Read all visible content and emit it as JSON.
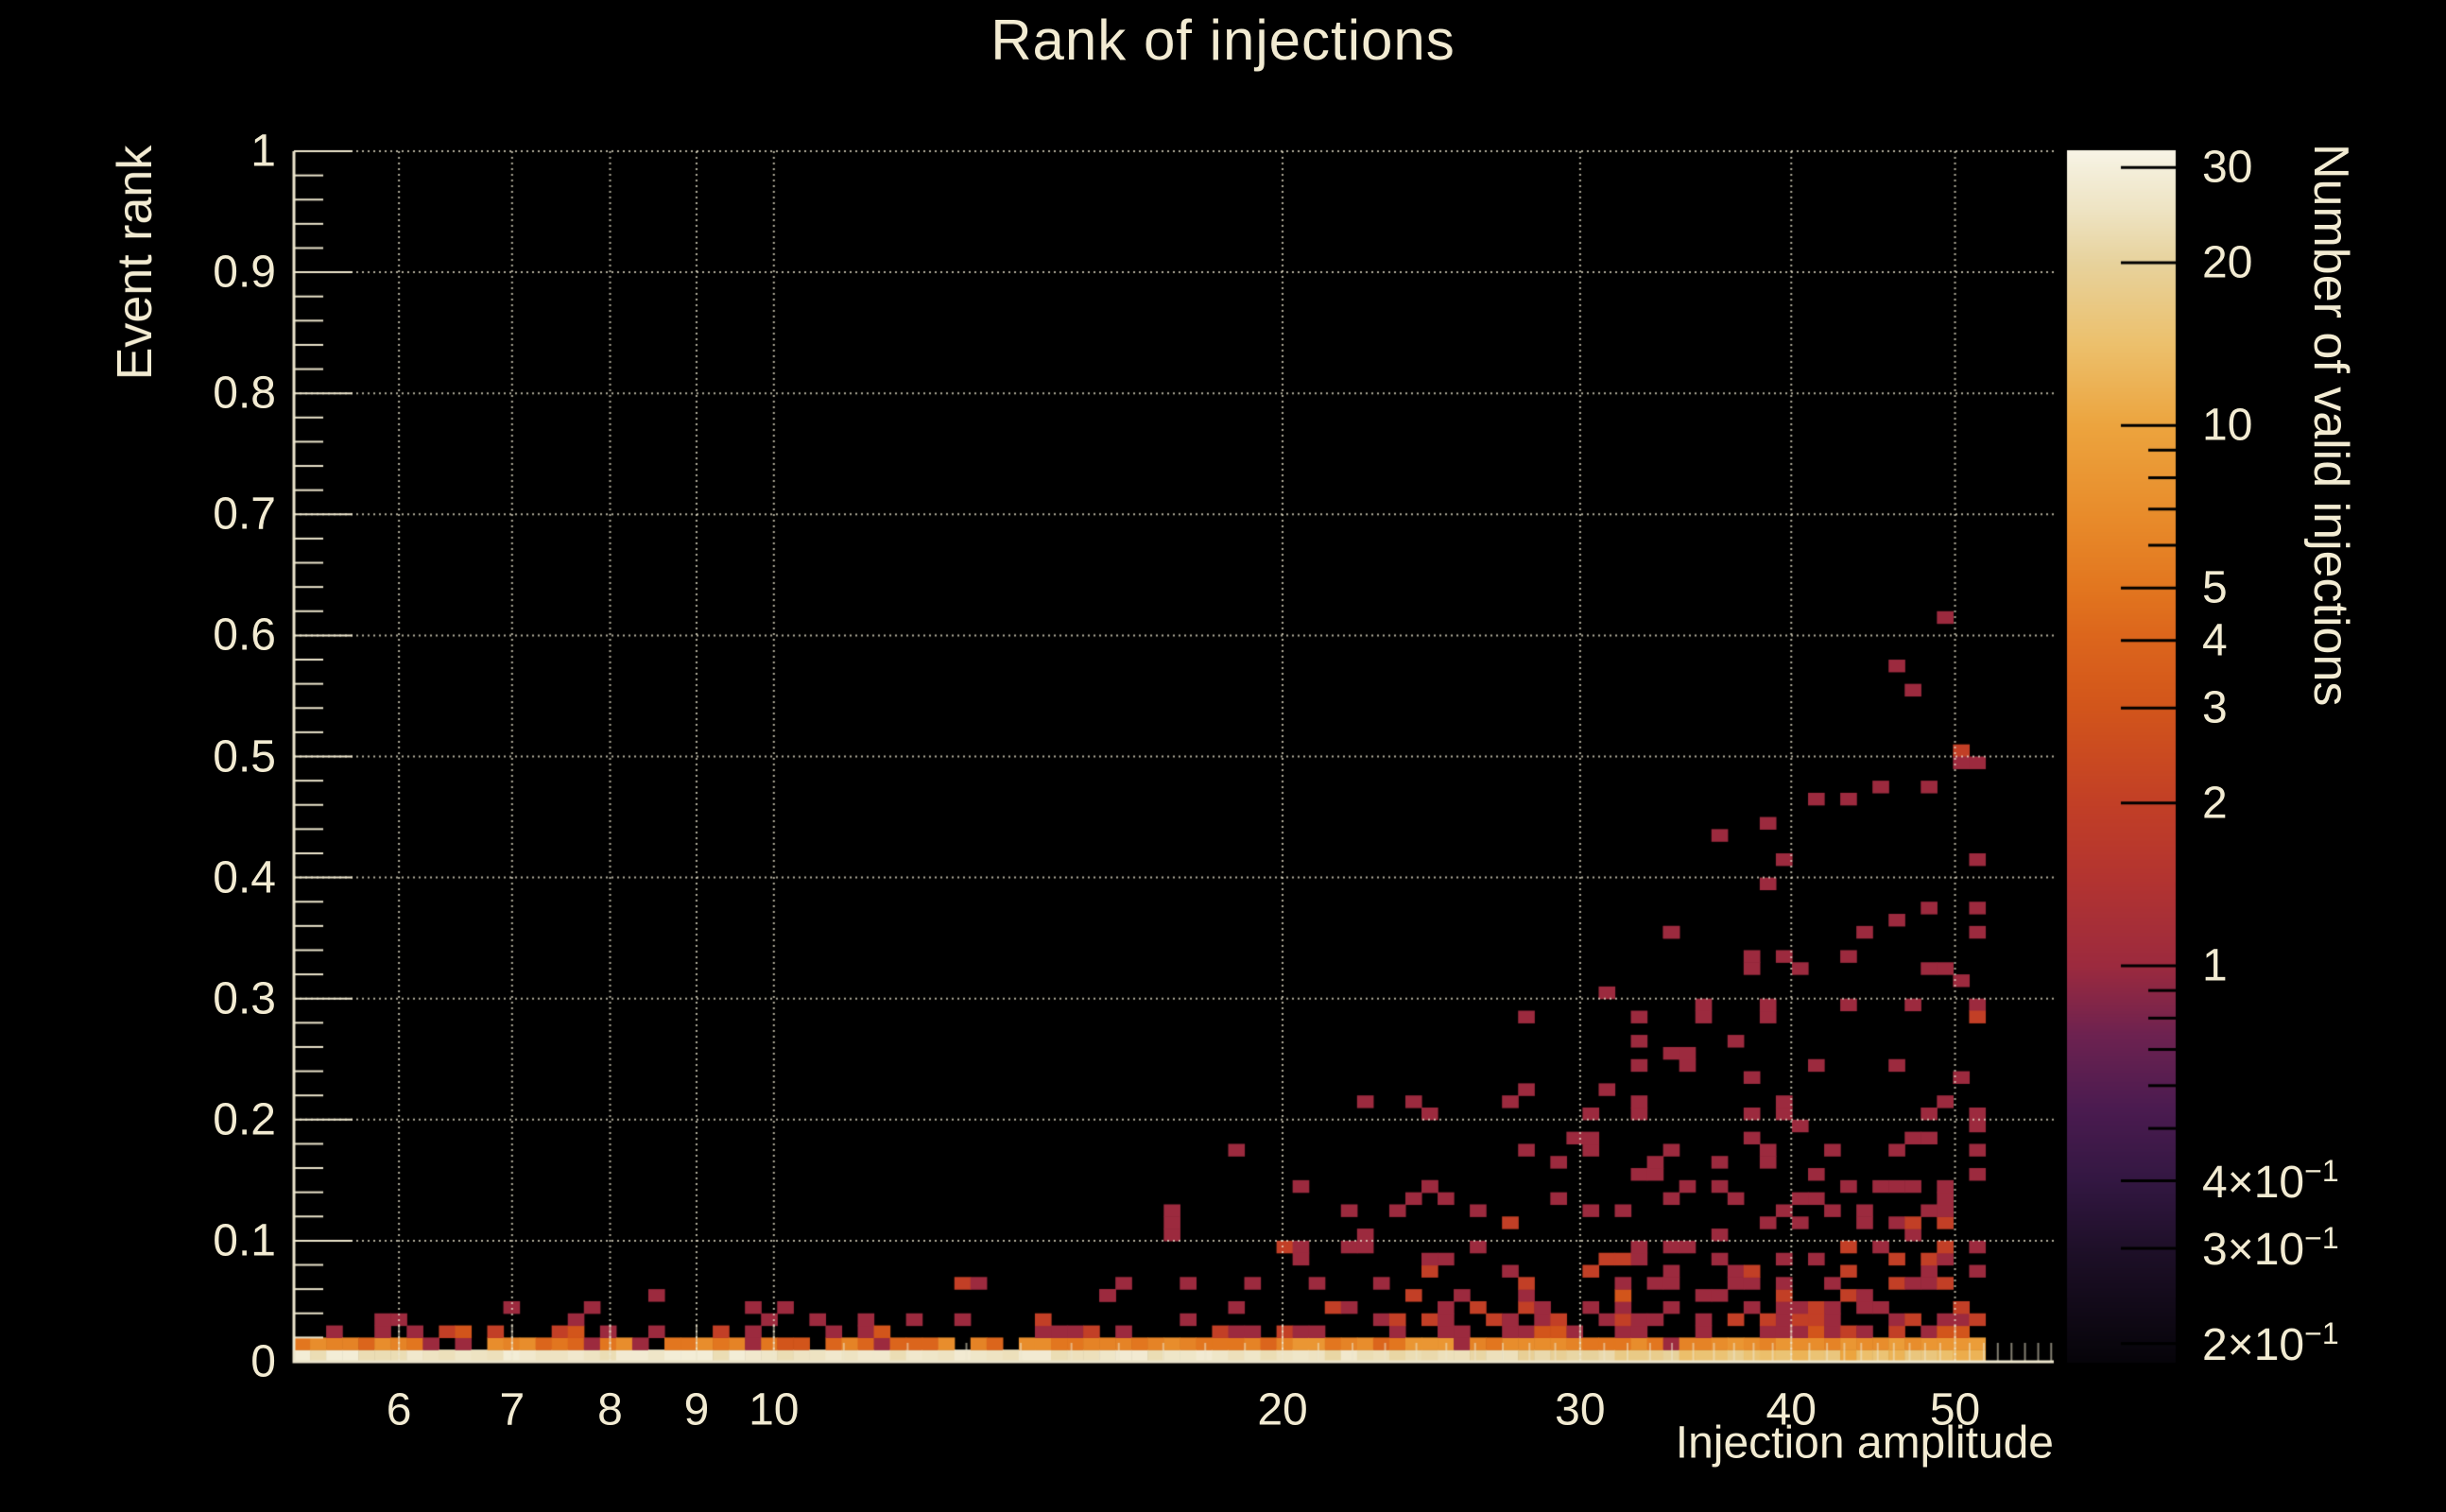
{
  "page": {
    "background": "#000000",
    "text_color": "#f2ebd2",
    "grid_color": "#efe8d0",
    "axis_color": "#ece5cc"
  },
  "chart_data": {
    "type": "heatmap",
    "title": "Rank of injections",
    "xlabel": "Injection amplitude",
    "ylabel": "Event rank",
    "zlabel": "Number of valid injections",
    "x_scale": "log",
    "x_axis_range": [
      5.2,
      57.2
    ],
    "x_hist_range": [
      5.2,
      52.1
    ],
    "nx": 105,
    "ny": 100,
    "y_axis_range": [
      0,
      1
    ],
    "z_scale": "log",
    "z_range": [
      0.185,
      32.3
    ],
    "grid": true,
    "legend_position": "right-colorbar",
    "x_major_ticks": [
      6,
      7,
      8,
      9,
      10,
      20,
      30,
      40,
      50
    ],
    "x_major_tick_labels": [
      "6",
      "7",
      "8",
      "9",
      "10",
      "20",
      "30",
      "40",
      "50"
    ],
    "x_minor_tick_integer_range": [
      6,
      57
    ],
    "y_major_ticks": [
      0,
      0.1,
      0.2,
      0.3,
      0.4,
      0.5,
      0.6,
      0.7,
      0.8,
      0.9,
      1
    ],
    "y_major_tick_labels": [
      "0",
      "0.1",
      "0.2",
      "0.3",
      "0.4",
      "0.5",
      "0.6",
      "0.7",
      "0.8",
      "0.9",
      "1"
    ],
    "y_minor_step": 0.02,
    "z_major_ticks": [
      {
        "value": 30,
        "label": "30",
        "exp": ""
      },
      {
        "value": 20,
        "label": "20",
        "exp": ""
      },
      {
        "value": 10,
        "label": "10",
        "exp": ""
      },
      {
        "value": 5,
        "label": "5",
        "exp": ""
      },
      {
        "value": 4,
        "label": "4",
        "exp": ""
      },
      {
        "value": 3,
        "label": "3",
        "exp": ""
      },
      {
        "value": 2,
        "label": "2",
        "exp": ""
      },
      {
        "value": 1,
        "label": "1",
        "exp": ""
      },
      {
        "value": 0.4,
        "label": "4×10",
        "exp": "−1"
      },
      {
        "value": 0.3,
        "label": "3×10",
        "exp": "−1"
      },
      {
        "value": 0.2,
        "label": "2×10",
        "exp": "−1"
      }
    ],
    "z_minor_ticks": [
      9,
      8,
      7,
      6,
      0.9,
      0.8,
      0.7,
      0.6,
      0.5
    ],
    "colormap": [
      [
        0.0,
        "#060409"
      ],
      [
        0.09,
        "#1d0f27"
      ],
      [
        0.15,
        "#331742"
      ],
      [
        0.21,
        "#4b1b50"
      ],
      [
        0.27,
        "#6d2250"
      ],
      [
        0.327,
        "#9c2a3e"
      ],
      [
        0.4,
        "#b33430"
      ],
      [
        0.461,
        "#c23f26"
      ],
      [
        0.54,
        "#d2551b"
      ],
      [
        0.6,
        "#dc661c"
      ],
      [
        0.639,
        "#e2761f"
      ],
      [
        0.7,
        "#e88c2b"
      ],
      [
        0.773,
        "#eca43e"
      ],
      [
        0.84,
        "#ecc06c"
      ],
      [
        0.907,
        "#e7d29c"
      ],
      [
        0.95,
        "#eee3c2"
      ],
      [
        0.986,
        "#f4efdb"
      ],
      [
        1.0,
        "#f8f4e6"
      ]
    ],
    "generation": {
      "seed": 12345,
      "row0_profile": [
        [
          0,
          26
        ],
        [
          20,
          26
        ],
        [
          40,
          25
        ],
        [
          55,
          26
        ],
        [
          65,
          24
        ],
        [
          75,
          21
        ],
        [
          85,
          17
        ],
        [
          95,
          14
        ],
        [
          104,
          12
        ]
      ],
      "row0_jitter": 7,
      "row1_profile": [
        [
          0,
          5
        ],
        [
          30,
          5
        ],
        [
          60,
          6
        ],
        [
          80,
          7
        ],
        [
          104,
          8
        ]
      ],
      "row1_jitter": 4,
      "row1_zero_prob": 0.06,
      "row1_one_prob": 0.1,
      "row2_prob": [
        [
          0,
          0.35
        ],
        [
          40,
          0.45
        ],
        [
          60,
          0.55
        ],
        [
          75,
          0.65
        ],
        [
          90,
          0.72
        ],
        [
          104,
          0.72
        ]
      ],
      "row3_prob": [
        [
          0,
          0.07
        ],
        [
          40,
          0.12
        ],
        [
          60,
          0.3
        ],
        [
          75,
          0.45
        ],
        [
          90,
          0.55
        ],
        [
          104,
          0.55
        ]
      ],
      "scatter_max_row": [
        [
          0,
          4
        ],
        [
          25,
          5
        ],
        [
          40,
          6
        ],
        [
          50,
          10
        ],
        [
          58,
          16
        ],
        [
          68,
          22
        ],
        [
          76,
          28
        ],
        [
          84,
          34
        ],
        [
          92,
          40
        ],
        [
          104,
          40
        ]
      ],
      "scatter_base_prob": [
        [
          0,
          0.04
        ],
        [
          40,
          0.08
        ],
        [
          60,
          0.18
        ],
        [
          75,
          0.32
        ],
        [
          90,
          0.48
        ],
        [
          104,
          0.5
        ]
      ],
      "outliers": [
        [
          102,
          61,
          1
        ],
        [
          99,
          57,
          1
        ],
        [
          100,
          55,
          1
        ],
        [
          103,
          50,
          2
        ],
        [
          103,
          49,
          1
        ],
        [
          104,
          49,
          1
        ],
        [
          101,
          47,
          1
        ],
        [
          98,
          47,
          1
        ],
        [
          96,
          46,
          1
        ],
        [
          94,
          46,
          1
        ],
        [
          91,
          44,
          1
        ],
        [
          88,
          43,
          1
        ],
        [
          92,
          41,
          1
        ],
        [
          104,
          41,
          1
        ],
        [
          91,
          39,
          1
        ],
        [
          104,
          37,
          1
        ],
        [
          85,
          35,
          1
        ],
        [
          97,
          35,
          1
        ],
        [
          96,
          33,
          1
        ],
        [
          103,
          31,
          1
        ],
        [
          100,
          29,
          1
        ],
        [
          87,
          28,
          1
        ],
        [
          104,
          28,
          2
        ],
        [
          83,
          26,
          1
        ],
        [
          99,
          24,
          1
        ],
        [
          75,
          21,
          1
        ],
        [
          101,
          20,
          1
        ],
        [
          79,
          18,
          1
        ],
        [
          58,
          17,
          1
        ],
        [
          70,
          14,
          1
        ],
        [
          66,
          10,
          1
        ],
        [
          62,
          8,
          1
        ],
        [
          55,
          6,
          1
        ],
        [
          50,
          5,
          1
        ]
      ]
    }
  }
}
